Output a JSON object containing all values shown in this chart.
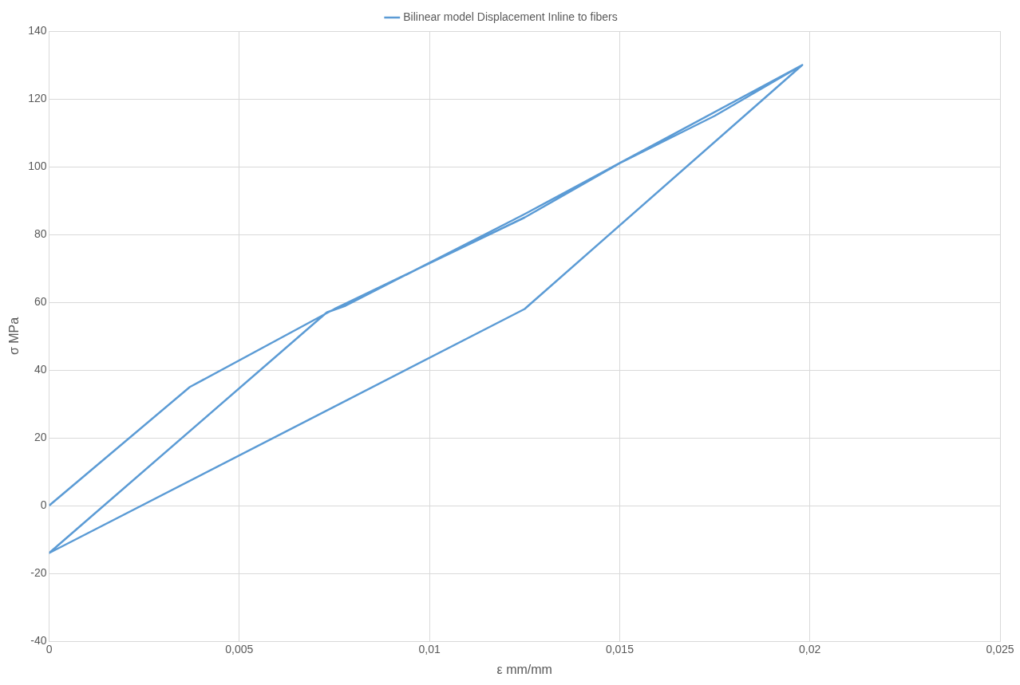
{
  "chart_data": {
    "type": "line",
    "xlabel": "ε mm/mm",
    "ylabel": "σ MPa",
    "xlim": [
      0,
      0.025
    ],
    "xticks": [
      0,
      {
        "value": 0.005,
        "label": "0,005"
      },
      {
        "value": 0.01,
        "label": "0,01"
      },
      {
        "value": 0.015,
        "label": "0,015"
      },
      {
        "value": 0.02,
        "label": "0,02"
      },
      {
        "value": 0.025,
        "label": "0,025"
      }
    ],
    "ylim": [
      -40,
      140
    ],
    "yticks": [
      -40,
      -20,
      0,
      20,
      40,
      60,
      80,
      100,
      120,
      140
    ],
    "grid": true,
    "legend": "top",
    "marker": "none",
    "line_style": "solid",
    "series": [
      {
        "name": "Bilinear model Displacement Inline to fibers",
        "color": "#5b9bd5",
        "x": [
          0,
          0.0037,
          0.0075,
          0.0125,
          0.015,
          0.0175,
          0.0198,
          0.0125,
          0,
          0.0073,
          0.0078,
          0.0125,
          0.0198,
          0.0125,
          0
        ],
        "values": [
          0,
          35,
          58,
          85,
          101,
          115,
          130,
          58,
          -14,
          57,
          59,
          86,
          130,
          58,
          -14
        ]
      }
    ]
  }
}
